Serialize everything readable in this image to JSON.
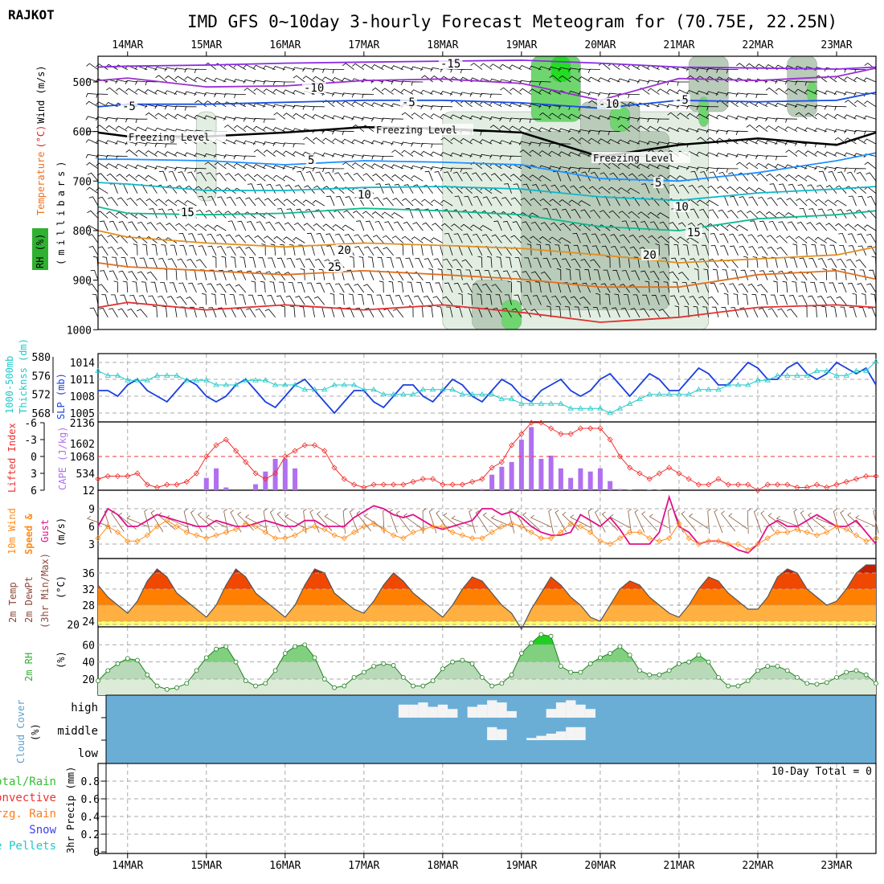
{
  "header": {
    "station": "RAJKOT",
    "title": "IMD GFS 0~10day 3-hourly Forecast Meteogram for (70.75E, 22.25N)"
  },
  "days": [
    "14MAR",
    "15MAR",
    "16MAR",
    "17MAR",
    "18MAR",
    "19MAR",
    "20MAR",
    "21MAR",
    "22MAR",
    "23MAR"
  ],
  "colors": {
    "slp": "#1a3fe0",
    "thickness": "#20c8c8",
    "li": "#f03030",
    "cape": "#b070f0",
    "wind": "#ff8c1a",
    "gust": "#e0108a",
    "rh": "#30b030",
    "cloud": "#6aaed6"
  },
  "labels": {
    "wind_ms": "Wind (m/s)",
    "temperature": "Temperature",
    "temp_unit": "(°C)",
    "rh_pct": "RH (%)",
    "millibars": "(millibars)",
    "thickness1": "1000-500mb",
    "thickness2": "Thicknss (dm)",
    "slp": "SLP (mb)",
    "lifted_index": "Lifted Index",
    "cape": "CAPE (J/kg)",
    "wind10m": "10m Wind",
    "speed": "Speed &",
    "gust": "Gust",
    "ms": "(m/s)",
    "temp2m": "2m Temp",
    "dew2m": "2m DewPt",
    "minmax": "(3hr Min/Max)",
    "degc": "(°C)",
    "rh2m": "2m RH",
    "pct": "(%)",
    "cloud_cover": "Cloud Cover",
    "cloud_pct": "(%)",
    "precip": "3hr Precip (mm)",
    "legend": [
      "Total/Rain",
      "Convective",
      "Frzg. Rain",
      "Snow",
      "Ice Pellets"
    ],
    "precip_total": "10-Day Total = 0"
  },
  "chart_data": [
    {
      "type": "contour",
      "name": "upper-air",
      "ylabel": "millibars",
      "yticks": [
        "500",
        "600",
        "700",
        "800",
        "900",
        "1000"
      ],
      "ylim": [
        448,
        1000
      ],
      "time_index": [
        0,
        3,
        11,
        19,
        27,
        35,
        43,
        51,
        59,
        67,
        75,
        79
      ],
      "isotherms": [
        {
          "value": -15,
          "color": "#8a2be2",
          "p": [
            470,
            468,
            466,
            462,
            460,
            458,
            456,
            462,
            470,
            472,
            474,
            470
          ]
        },
        {
          "value": -10,
          "color": "#9a30d0",
          "p": [
            497,
            492,
            510,
            508,
            497,
            494,
            503,
            537,
            493,
            497,
            489,
            472
          ]
        },
        {
          "value": -5,
          "color": "#1a50e0",
          "p": [
            550,
            545,
            545,
            541,
            537,
            537,
            542,
            553,
            537,
            540,
            537,
            521
          ]
        },
        {
          "value": 0,
          "color": "#000000",
          "p": [
            602,
            610,
            610,
            602,
            591,
            594,
            602,
            651,
            627,
            614,
            627,
            602
          ]
        },
        {
          "value": 5,
          "color": "#1e90ff",
          "p": [
            656,
            656,
            659,
            667,
            659,
            662,
            667,
            695,
            700,
            683,
            659,
            643
          ]
        },
        {
          "value": 10,
          "color": "#10b8c8",
          "p": [
            703,
            706,
            719,
            719,
            713,
            711,
            716,
            732,
            739,
            724,
            716,
            711
          ]
        },
        {
          "value": 15,
          "color": "#10b890",
          "p": [
            752,
            765,
            768,
            765,
            755,
            760,
            768,
            792,
            800,
            776,
            768,
            760
          ]
        },
        {
          "value": 20,
          "color": "#e09020",
          "p": [
            800,
            813,
            825,
            833,
            825,
            830,
            836,
            849,
            865,
            857,
            849,
            833
          ]
        },
        {
          "value": 25,
          "color": "#e07020",
          "p": [
            865,
            873,
            881,
            889,
            881,
            889,
            898,
            914,
            914,
            889,
            881,
            898
          ]
        },
        {
          "value": 30,
          "color": "#e03030",
          "p": [
            955,
            945,
            960,
            950,
            960,
            950,
            965,
            985,
            975,
            955,
            950,
            955
          ]
        }
      ],
      "contour_labels": [
        "-15",
        "-10",
        "-10",
        "-5",
        "-5",
        "-5",
        "Freezing Level",
        "Freezing Level",
        "Freezing Level",
        "5",
        "5",
        "10",
        "10",
        "15",
        "15",
        "20",
        "20",
        "25"
      ],
      "rh_shading": [
        {
          "t": [
            35,
            62
          ],
          "p": [
            560,
            1000
          ],
          "level": "70"
        },
        {
          "t": [
            43,
            58
          ],
          "p": [
            600,
            960
          ],
          "level": "80"
        },
        {
          "t": [
            44,
            49
          ],
          "p": [
            448,
            580
          ],
          "level": "90"
        },
        {
          "t": [
            46,
            48
          ],
          "p": [
            448,
            500
          ],
          "level": "95"
        },
        {
          "t": [
            49,
            55
          ],
          "p": [
            540,
            640
          ],
          "level": "80"
        },
        {
          "t": [
            52,
            54
          ],
          "p": [
            550,
            600
          ],
          "level": "90"
        },
        {
          "t": [
            60,
            64
          ],
          "p": [
            448,
            560
          ],
          "level": "80"
        },
        {
          "t": [
            61,
            62
          ],
          "p": [
            530,
            590
          ],
          "level": "90"
        },
        {
          "t": [
            70,
            73
          ],
          "p": [
            448,
            570
          ],
          "level": "80"
        },
        {
          "t": [
            72,
            73
          ],
          "p": [
            500,
            540
          ],
          "level": "90"
        },
        {
          "t": [
            10,
            12
          ],
          "p": [
            560,
            740
          ],
          "level": "70"
        },
        {
          "t": [
            38,
            42
          ],
          "p": [
            900,
            1000
          ],
          "level": "80"
        },
        {
          "t": [
            41,
            43
          ],
          "p": [
            940,
            1000
          ],
          "level": "90"
        }
      ]
    },
    {
      "type": "line",
      "name": "thickness-slp",
      "thickness_ticks": [
        "580",
        "576",
        "572",
        "568"
      ],
      "thickness_ylim": [
        568,
        580
      ],
      "slp_ticks": [
        "1014",
        "1011",
        "1008",
        "1005"
      ],
      "slp_ylim": [
        1005,
        1014
      ],
      "slp": [
        1009,
        1009,
        1008,
        1010,
        1011,
        1009,
        1008,
        1007,
        1009,
        1011,
        1010,
        1008,
        1007,
        1008,
        1010,
        1011,
        1009,
        1007,
        1006,
        1008,
        1010,
        1011,
        1009,
        1007,
        1005,
        1007,
        1009,
        1009,
        1007,
        1006,
        1008,
        1010,
        1010,
        1008,
        1007,
        1009,
        1011,
        1010,
        1008,
        1007,
        1009,
        1011,
        1010,
        1008,
        1007,
        1009,
        1010,
        1011,
        1009,
        1008,
        1009,
        1011,
        1012,
        1010,
        1008,
        1010,
        1012,
        1011,
        1009,
        1009,
        1011,
        1013,
        1012,
        1010,
        1010,
        1012,
        1014,
        1013,
        1011,
        1011,
        1013,
        1014,
        1012,
        1011,
        1012,
        1014,
        1013,
        1012,
        1013,
        1010
      ],
      "thickness": [
        577,
        576,
        576,
        575,
        575,
        575,
        576,
        576,
        576,
        575,
        575,
        575,
        574,
        574,
        574,
        575,
        575,
        575,
        574,
        574,
        574,
        573,
        573,
        573,
        574,
        574,
        574,
        573,
        573,
        572,
        572,
        572,
        572,
        573,
        573,
        573,
        573,
        572,
        572,
        572,
        572,
        571,
        571,
        570,
        570,
        570,
        570,
        570,
        569,
        569,
        569,
        569,
        568,
        569,
        570,
        571,
        572,
        572,
        572,
        572,
        572,
        573,
        573,
        573,
        574,
        574,
        574,
        575,
        575,
        576,
        576,
        576,
        576,
        577,
        577,
        576,
        576,
        577,
        577,
        579
      ]
    },
    {
      "type": "line+bar",
      "name": "li-cape",
      "li_ticks": [
        "-6",
        "-3",
        "0",
        "3",
        "6"
      ],
      "li_ylim": [
        -6,
        6
      ],
      "cape_ticks": [
        "2136",
        "1602",
        "1068",
        "534",
        "12"
      ],
      "cape_ylim": [
        12,
        2136
      ],
      "lifted_index": [
        4,
        3.5,
        3.5,
        3.5,
        3,
        5,
        5.5,
        5,
        5,
        4.5,
        3,
        0,
        -2,
        -3,
        -1,
        1,
        3,
        4,
        3,
        0,
        -1,
        -2,
        -2,
        -1,
        2,
        4,
        5,
        5.5,
        5,
        5,
        5,
        5,
        4.5,
        4,
        4,
        5,
        5,
        5,
        4.5,
        4,
        2,
        1,
        -2,
        -4,
        -6,
        -6,
        -5,
        -4,
        -4,
        -5,
        -5,
        -5,
        -3,
        0,
        2,
        3,
        4,
        3,
        2,
        3,
        4,
        5,
        5,
        4,
        5,
        5,
        5,
        6,
        5,
        5,
        5,
        5.5,
        5.5,
        5,
        5.5,
        5,
        4.5,
        4,
        3.5,
        3.5
      ],
      "cape": [
        0,
        0,
        0,
        0,
        0,
        0,
        0,
        0,
        0,
        0,
        0,
        400,
        700,
        100,
        0,
        0,
        200,
        600,
        1000,
        1000,
        700,
        0,
        0,
        0,
        0,
        0,
        0,
        0,
        0,
        0,
        0,
        0,
        0,
        0,
        0,
        0,
        0,
        0,
        0,
        50,
        500,
        750,
        900,
        1600,
        2000,
        1000,
        1100,
        700,
        400,
        700,
        600,
        700,
        300,
        50,
        30,
        0,
        30,
        30,
        0,
        0,
        0,
        0,
        0,
        0,
        0,
        0,
        0,
        0,
        0,
        0,
        0,
        0,
        0,
        0,
        0,
        0,
        0,
        0,
        0,
        0
      ]
    },
    {
      "type": "line",
      "name": "wind-10m",
      "yticks": [
        "9",
        "6",
        "3"
      ],
      "ylim": [
        1.5,
        11.5
      ],
      "speed": [
        4,
        6,
        5,
        3.5,
        3.5,
        4.5,
        6,
        7,
        6,
        5,
        4.5,
        4,
        4.5,
        5,
        5.5,
        6.5,
        6,
        5,
        4,
        4,
        4.5,
        5.5,
        6,
        5.5,
        4.5,
        4,
        5,
        6,
        6.5,
        5.5,
        4.5,
        4,
        5,
        5.5,
        6,
        6,
        5,
        4.5,
        4,
        4,
        5,
        6,
        6.5,
        6,
        5,
        4,
        4,
        5,
        6.5,
        6,
        5,
        3.5,
        3,
        4,
        5,
        5,
        4,
        3.5,
        4,
        6.5,
        4,
        3,
        3.5,
        3.5,
        3,
        3,
        2,
        3,
        4,
        5,
        5,
        5.5,
        5,
        4.5,
        5,
        6,
        5.5,
        4.5,
        3.5,
        4
      ],
      "gust": [
        6,
        9,
        8,
        6,
        6,
        7,
        8,
        7.5,
        7,
        6.5,
        6,
        6,
        7,
        6.5,
        6,
        6,
        6.5,
        7,
        6.5,
        6,
        6,
        7,
        7,
        6,
        6,
        6,
        7.5,
        8.5,
        9.5,
        9,
        8,
        7.5,
        8,
        7,
        6,
        5.5,
        6,
        6.5,
        7,
        9,
        9,
        8,
        8.5,
        7.5,
        6,
        5,
        4.5,
        4.5,
        5,
        8,
        7,
        6,
        7.5,
        5.5,
        3,
        3,
        3,
        5,
        11,
        6,
        5,
        3,
        3.5,
        3.5,
        3,
        2,
        1.5,
        3,
        6,
        7,
        6,
        6,
        7,
        8,
        7,
        6,
        6,
        7,
        5,
        3
      ]
    },
    {
      "type": "area",
      "name": "temp-2m",
      "yticks": [
        "36",
        "32",
        "28",
        "24",
        "20"
      ],
      "ylim": [
        20,
        39
      ],
      "temp": [
        33,
        30,
        28,
        26,
        29,
        34,
        37,
        35,
        31,
        29,
        27,
        25,
        28,
        33,
        37,
        35,
        31,
        29,
        27,
        25,
        28,
        33,
        37,
        36,
        31,
        29,
        27,
        26,
        29,
        33,
        36,
        34,
        31,
        29,
        27,
        25,
        28,
        32,
        35,
        34,
        31,
        28,
        26,
        22,
        27,
        31,
        35,
        33,
        30,
        28,
        25,
        24,
        28,
        32,
        34,
        33,
        30,
        28,
        26,
        25,
        28,
        32,
        35,
        34,
        31,
        29,
        27,
        27,
        30,
        35,
        37,
        36,
        32,
        30,
        28,
        29,
        32,
        36,
        38,
        38
      ]
    },
    {
      "type": "area",
      "name": "rh-2m",
      "yticks": [
        "60",
        "40",
        "20"
      ],
      "ylim": [
        0,
        80
      ],
      "rh": [
        18,
        30,
        38,
        44,
        42,
        25,
        12,
        8,
        10,
        15,
        30,
        45,
        55,
        58,
        40,
        18,
        12,
        15,
        30,
        50,
        58,
        60,
        45,
        20,
        10,
        12,
        22,
        28,
        35,
        38,
        36,
        22,
        12,
        12,
        18,
        32,
        40,
        42,
        38,
        22,
        12,
        15,
        25,
        50,
        62,
        72,
        70,
        35,
        28,
        28,
        38,
        45,
        50,
        58,
        48,
        30,
        25,
        25,
        30,
        38,
        40,
        48,
        40,
        22,
        12,
        12,
        18,
        30,
        35,
        35,
        30,
        22,
        15,
        14,
        16,
        22,
        28,
        30,
        25,
        15
      ]
    },
    {
      "type": "cloud",
      "name": "cloud-cover",
      "levels": [
        "high",
        "middle",
        "low"
      ],
      "high": [
        [
          31,
          60
        ],
        [
          32,
          60
        ],
        [
          33,
          70
        ],
        [
          34,
          50
        ],
        [
          35,
          60
        ],
        [
          36,
          40
        ],
        [
          38,
          50
        ],
        [
          39,
          60
        ],
        [
          40,
          80
        ],
        [
          41,
          70
        ],
        [
          42,
          30
        ],
        [
          46,
          40
        ],
        [
          47,
          70
        ],
        [
          48,
          80
        ],
        [
          49,
          60
        ],
        [
          50,
          40
        ]
      ],
      "middle": [
        [
          40,
          60
        ],
        [
          41,
          50
        ],
        [
          44,
          10
        ],
        [
          45,
          20
        ],
        [
          46,
          30
        ],
        [
          47,
          40
        ],
        [
          48,
          60
        ],
        [
          49,
          60
        ]
      ],
      "low": []
    },
    {
      "type": "bar",
      "name": "precip-3hr",
      "yticks": [
        "0.8",
        "0.6",
        "0.4",
        "0.2",
        "0"
      ],
      "ylim": [
        0,
        0.9
      ],
      "total": 0
    }
  ]
}
